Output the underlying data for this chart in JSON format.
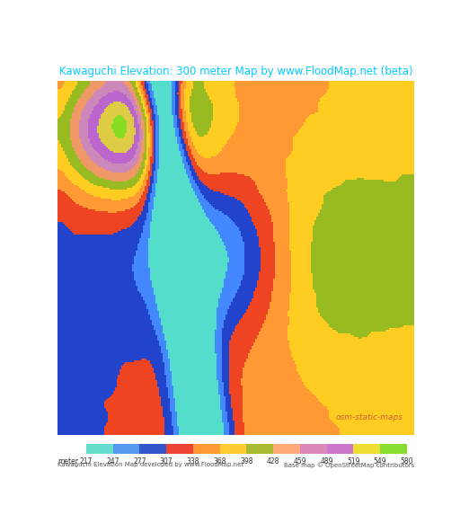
{
  "title": "Kawaguchi Elevation: 300 meter Map by www.FloodMap.net (beta)",
  "title_color": "#00ccff",
  "title_bg": "#1a1a2e",
  "map_bg": "#d4b4d4",
  "colorbar_values": [
    217,
    247,
    277,
    307,
    338,
    368,
    398,
    428,
    459,
    489,
    519,
    549,
    580
  ],
  "colorbar_colors": [
    "#00e5cc",
    "#4488ff",
    "#2255cc",
    "#ee4444",
    "#ff9944",
    "#ffcc44",
    "#aadd44",
    "#ffaa88",
    "#dd88aa",
    "#cc66cc",
    "#ffdd00",
    "#aaff44",
    "#00ffaa"
  ],
  "legend_colors": [
    "#66ddcc",
    "#5599ff",
    "#3366dd",
    "#ee5533",
    "#ff9944",
    "#ffcc33",
    "#aabb33",
    "#ffaa77",
    "#dd99bb",
    "#cc77cc",
    "#ffee44",
    "#99ee33"
  ],
  "bottom_left_text": "Kawaguchi Elevation Map developed by www.FloodMap.net",
  "bottom_right_text": "Base map © OpenStreetMap contributors",
  "osm_text": "osm-static-maps",
  "osm_color": "#cc6633",
  "bottom_text_color": "#555555",
  "figsize": [
    5.12,
    5.82
  ],
  "dpi": 100,
  "map_image_colors": {
    "deep_teal": "#00c8b4",
    "blue": "#4477ff",
    "dark_blue": "#2244bb",
    "orange_red": "#ee4422",
    "light_orange": "#ffaa55",
    "yellow": "#ffdd44",
    "yellow_green": "#aacc33",
    "pink": "#dd88aa",
    "violet": "#bb66cc",
    "mauve": "#cc88cc",
    "light_pink": "#ddb0dd",
    "salmon": "#ee9977",
    "green": "#44cc44",
    "bright_green": "#00ff88"
  }
}
